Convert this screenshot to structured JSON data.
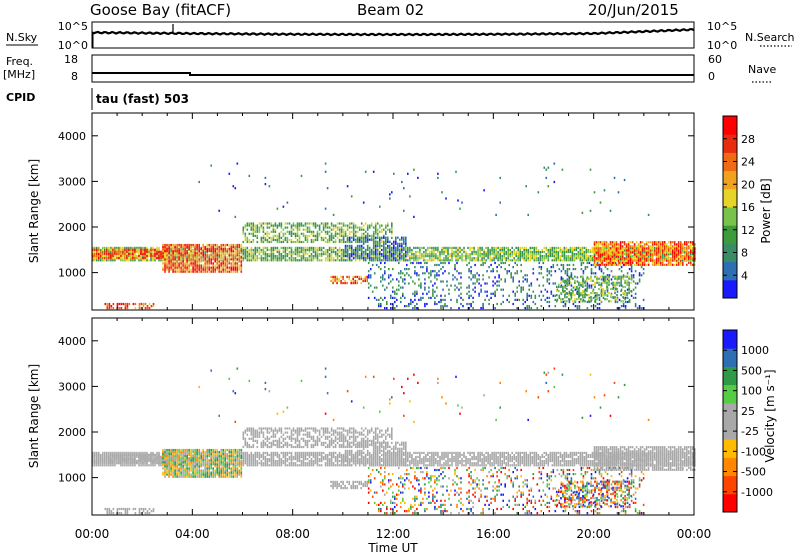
{
  "header": {
    "station": "Goose Bay (fitACF)",
    "beam": "Beam 02",
    "date": "20/Jun/2015"
  },
  "panels": {
    "nsky_label": "N.Sky",
    "nsearch_label": "N.Search",
    "nsky_ticks": [
      "10^5",
      "10^0"
    ],
    "freq_label": "Freq.",
    "freq_unit": "[MHz]",
    "freq_ticks": [
      "18",
      "8"
    ],
    "nave_label": "Nave",
    "nave_ticks": [
      "60",
      "0"
    ],
    "cpid_label": "CPID",
    "cpid_value": "tau (fast) 503"
  },
  "colors": {
    "power": [
      "#1a1aff",
      "#2e6fb3",
      "#3a8c64",
      "#3c9c3c",
      "#79c34a",
      "#e6d428",
      "#f0a21e",
      "#f06a14",
      "#e82c10",
      "#ff0000"
    ],
    "velocity": [
      "#ff0000",
      "#ff4400",
      "#ff8800",
      "#ffbb00",
      "#a8a8a8",
      "#a8a8a8",
      "#55cc44",
      "#2f9a46",
      "#2e6fb3",
      "#1a1aff"
    ]
  },
  "chart_data": [
    {
      "type": "heatmap",
      "title": "",
      "xlabel": "Time UT",
      "ylabel": "Slant Range [km]",
      "x_ticks": [
        "00:00",
        "04:00",
        "08:00",
        "12:00",
        "16:00",
        "20:00",
        "00:00"
      ],
      "xlim": [
        0,
        24
      ],
      "ylim": [
        180,
        4500
      ],
      "y_ticks": [
        1000,
        2000,
        3000,
        4000
      ],
      "colorbar": {
        "label": "Power [dB]",
        "range": [
          0,
          32
        ],
        "ticks": [
          4,
          8,
          12,
          16,
          20,
          24,
          28
        ]
      }
    },
    {
      "type": "heatmap",
      "title": "",
      "xlabel": "Time UT",
      "ylabel": "Slant Range [km]",
      "x_ticks": [
        "00:00",
        "04:00",
        "08:00",
        "12:00",
        "16:00",
        "20:00",
        "00:00"
      ],
      "xlim": [
        0,
        24
      ],
      "ylim": [
        180,
        4500
      ],
      "y_ticks": [
        1000,
        2000,
        3000,
        4000
      ],
      "colorbar": {
        "label": "Velocity [m s⁻¹]",
        "ticks": [
          "1000",
          "500",
          "100",
          "25",
          "-25",
          "-100",
          "-500",
          "-1000"
        ]
      }
    }
  ]
}
